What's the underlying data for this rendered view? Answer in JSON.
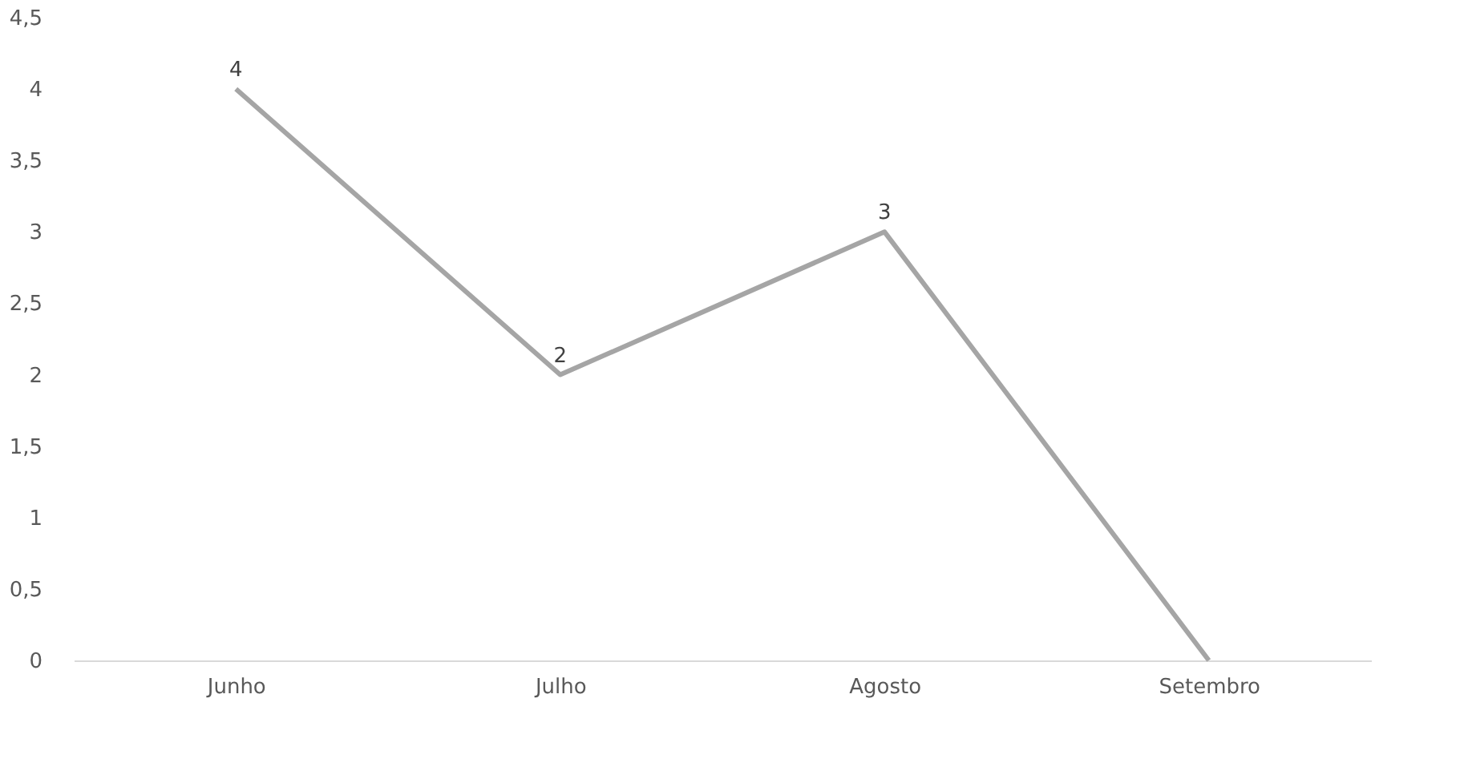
{
  "chart_data": {
    "type": "line",
    "categories": [
      "Junho",
      "Julho",
      "Agosto",
      "Setembro"
    ],
    "series": [
      {
        "color": "#a5a5a5",
        "values": [
          4,
          2,
          3,
          0
        ]
      }
    ],
    "value_labels": [
      "4",
      "2",
      "3",
      null
    ],
    "ylim": [
      0,
      4.5
    ],
    "yticks": [
      0,
      {
        "value": 0.5,
        "label": "0,5"
      },
      1,
      {
        "value": 1.5,
        "label": "1,5"
      },
      2,
      {
        "value": 2.5,
        "label": "2,5"
      },
      3,
      {
        "value": 3.5,
        "label": "3,5"
      },
      4,
      {
        "value": 4.5,
        "label": "4,5"
      }
    ],
    "grid": false,
    "marker": "none",
    "line_style": "solid"
  }
}
